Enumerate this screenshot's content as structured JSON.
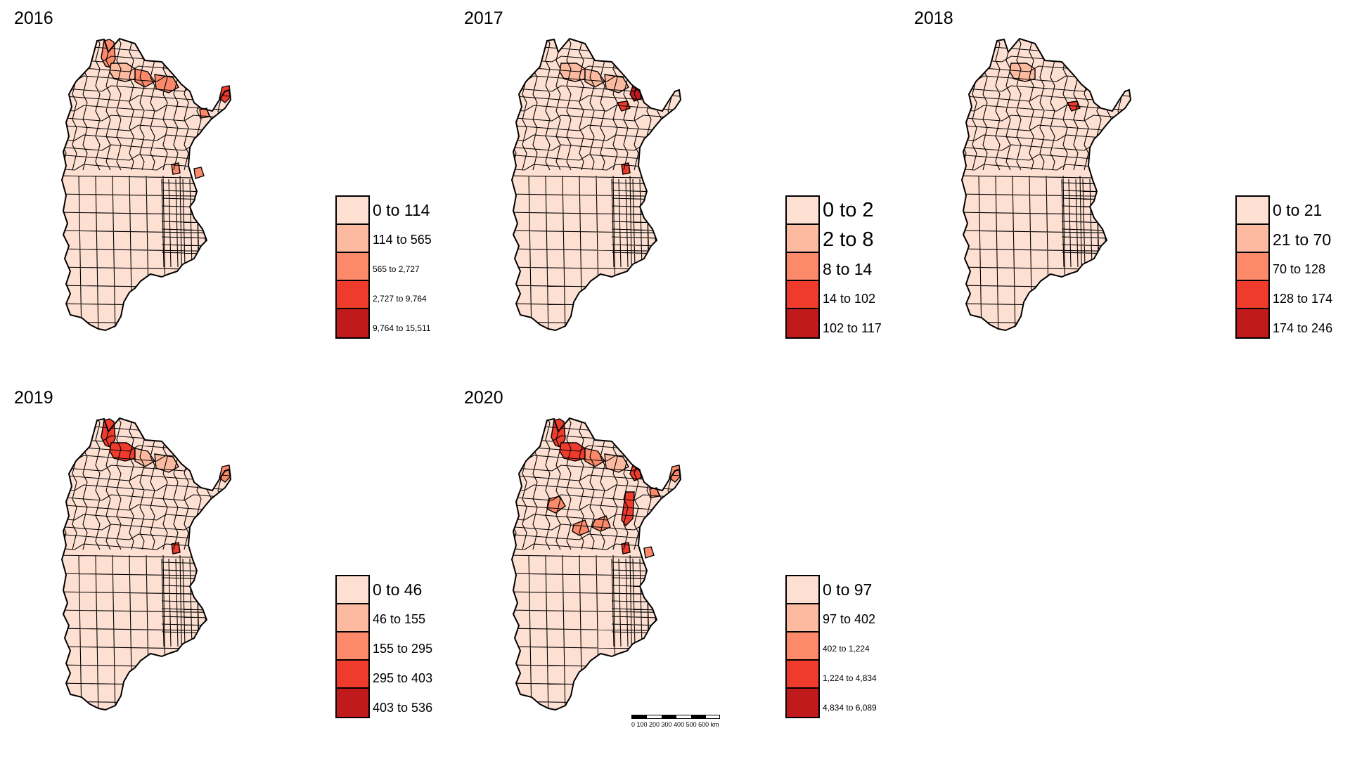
{
  "colors": {
    "class1": "#fee0d2",
    "class2": "#fcbba1",
    "class3": "#fc8a6a",
    "class4": "#ef3b2c",
    "class5": "#c01a1d",
    "border": "#000000",
    "background": "#ffffff"
  },
  "panels": [
    {
      "year": "2016",
      "legend": [
        {
          "label": "0 to 114",
          "size": "l"
        },
        {
          "label": "114 to 565",
          "size": "m"
        },
        {
          "label": "565 to 2,727",
          "size": "s"
        },
        {
          "label": "2,727 to 9,764",
          "size": "s"
        },
        {
          "label": "9,764 to 15,511",
          "size": "s"
        }
      ],
      "highlights": [
        {
          "region": "northwest-jujuy",
          "class": 3
        },
        {
          "region": "salta-east",
          "class": 3
        },
        {
          "region": "salta-central",
          "class": 2
        },
        {
          "region": "formosa-west",
          "class": 3
        },
        {
          "region": "misiones-tip",
          "class": 4
        },
        {
          "region": "corrientes-north",
          "class": 3
        },
        {
          "region": "entre-rios-north",
          "class": 3
        },
        {
          "region": "santa-fe-east",
          "class": 3
        }
      ]
    },
    {
      "year": "2017",
      "legend": [
        {
          "label": "0 to 2",
          "size": "xl"
        },
        {
          "label": "2 to 8",
          "size": "xl"
        },
        {
          "label": "8 to 14",
          "size": "l"
        },
        {
          "label": "14 to 102",
          "size": "m"
        },
        {
          "label": "102 to 117",
          "size": "m"
        }
      ],
      "highlights": [
        {
          "region": "salta-central",
          "class": 2
        },
        {
          "region": "salta-east",
          "class": 2
        },
        {
          "region": "formosa-west",
          "class": 2
        },
        {
          "region": "formosa-east",
          "class": 5
        },
        {
          "region": "chaco-north",
          "class": 4
        },
        {
          "region": "santa-fe-east",
          "class": 4
        }
      ]
    },
    {
      "year": "2018",
      "legend": [
        {
          "label": "0 to 21",
          "size": "l"
        },
        {
          "label": "21 to 70",
          "size": "l"
        },
        {
          "label": "70 to 128",
          "size": "m"
        },
        {
          "label": "128 to 174",
          "size": "m"
        },
        {
          "label": "174 to 246",
          "size": "m"
        }
      ],
      "highlights": [
        {
          "region": "salta-central",
          "class": 2
        },
        {
          "region": "chaco-north",
          "class": 4
        }
      ]
    },
    {
      "year": "2019",
      "legend": [
        {
          "label": "0 to 46",
          "size": "l"
        },
        {
          "label": "46 to 155",
          "size": "m"
        },
        {
          "label": "155 to 295",
          "size": "m"
        },
        {
          "label": "295 to 403",
          "size": "m"
        },
        {
          "label": "403 to 536",
          "size": "m"
        }
      ],
      "highlights": [
        {
          "region": "northwest-jujuy",
          "class": 4
        },
        {
          "region": "salta-central",
          "class": 4
        },
        {
          "region": "salta-east",
          "class": 2
        },
        {
          "region": "formosa-west",
          "class": 2
        },
        {
          "region": "misiones-tip",
          "class": 3
        },
        {
          "region": "santa-fe-east",
          "class": 4
        }
      ]
    },
    {
      "year": "2020",
      "legend": [
        {
          "label": "0 to 97",
          "size": "l"
        },
        {
          "label": "97 to 402",
          "size": "m"
        },
        {
          "label": "402 to 1,224",
          "size": "s"
        },
        {
          "label": "1,224 to 4,834",
          "size": "s"
        },
        {
          "label": "4,834 to 6,089",
          "size": "s"
        }
      ],
      "highlights": [
        {
          "region": "northwest-jujuy",
          "class": 4
        },
        {
          "region": "salta-central",
          "class": 4
        },
        {
          "region": "salta-east",
          "class": 3
        },
        {
          "region": "formosa-west",
          "class": 2
        },
        {
          "region": "formosa-east",
          "class": 4
        },
        {
          "region": "misiones-tip",
          "class": 3
        },
        {
          "region": "corrientes-north",
          "class": 3
        },
        {
          "region": "catamarca",
          "class": 3
        },
        {
          "region": "santiago-central",
          "class": 3
        },
        {
          "region": "cordoba-north",
          "class": 3
        },
        {
          "region": "santa-fe-central",
          "class": 4
        },
        {
          "region": "santa-fe-east",
          "class": 4
        },
        {
          "region": "entre-rios-north",
          "class": 3
        }
      ]
    }
  ],
  "scale_bar": {
    "label": "0   100 200 300 400 500 600 km"
  }
}
